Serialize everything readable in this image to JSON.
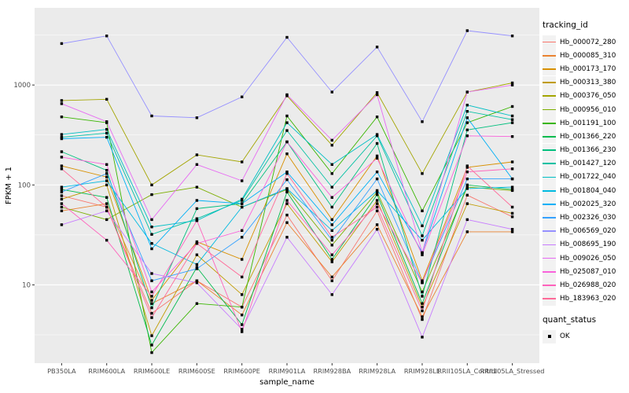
{
  "figure": {
    "legend": {
      "title": "tracking_id"
    },
    "legend2": {
      "title": "quant_status",
      "items": [
        {
          "label": "OK",
          "glyph": "black-square"
        }
      ]
    },
    "colors": {
      "panel_bg": "#EBEBEB",
      "grid_major": "#FFFFFF",
      "grid_minor": "#FFFFFF",
      "tick_label": "#4D4D4D",
      "axis_title": "#000000",
      "legend_key_bg": "#F2F2F2",
      "point": "#000000"
    }
  },
  "chart_data": {
    "type": "line",
    "title": "",
    "xlabel": "sample_name",
    "ylabel": "FPKM + 1",
    "yscale": "log10",
    "grid": "major and minor white gridlines on gray panel",
    "legend_position": "right",
    "point_shape": "small black square (quant_status OK)",
    "yticks": [
      10,
      100,
      1000
    ],
    "minor_gridlines": [
      3.162,
      31.62,
      316.2,
      3162
    ],
    "ylim_log10": [
      0.217,
      3.772
    ],
    "x_categories": [
      "PB350LA",
      "RRIM600LA",
      "RRIM600LE",
      "RRIM600SE",
      "RRIM600PE",
      "RRIM901LA",
      "RRIM928BA",
      "RRIM928LA",
      "RRIM928LE",
      "RRII105LA_Control",
      "RRII105LA_Stressed"
    ],
    "series": [
      {
        "name": "Hb_000072_280",
        "color": "#F8766D",
        "quant_status": "OK",
        "values": [
          78,
          60,
          5.2,
          11,
          6,
          50,
          11,
          55,
          4.5,
          79,
          48
        ]
      },
      {
        "name": "Hb_000085_310",
        "color": "#EA8331",
        "quant_status": "OK",
        "values": [
          55,
          65,
          6.5,
          11,
          5,
          42,
          12,
          40,
          4.8,
          34,
          34
        ]
      },
      {
        "name": "Hb_000173_170",
        "color": "#D89000",
        "quant_status": "OK",
        "values": [
          155,
          120,
          7,
          27,
          18,
          205,
          45,
          195,
          11,
          150,
          170
        ]
      },
      {
        "name": "Hb_000313_380",
        "color": "#C09B00",
        "quant_status": "OK",
        "values": [
          72,
          100,
          3.1,
          20,
          8,
          65,
          17,
          70,
          6,
          65,
          52
        ]
      },
      {
        "name": "Hb_000376_050",
        "color": "#A3A500",
        "quant_status": "OK",
        "values": [
          700,
          720,
          100,
          200,
          170,
          780,
          250,
          840,
          130,
          850,
          1050
        ]
      },
      {
        "name": "Hb_000956_010",
        "color": "#7CAE00",
        "quant_status": "OK",
        "values": [
          60,
          45,
          80,
          95,
          60,
          90,
          25,
          85,
          8.5,
          95,
          88
        ]
      },
      {
        "name": "Hb_001191_100",
        "color": "#39B600",
        "quant_status": "OK",
        "values": [
          480,
          420,
          2.1,
          6.5,
          6,
          490,
          130,
          480,
          55,
          420,
          610
        ]
      },
      {
        "name": "Hb_001366_220",
        "color": "#00BB4E",
        "quant_status": "OK",
        "values": [
          90,
          75,
          2.5,
          15,
          4,
          85,
          18,
          80,
          6.5,
          100,
          90
        ]
      },
      {
        "name": "Hb_001366_230",
        "color": "#00BF7D",
        "quant_status": "OK",
        "values": [
          215,
          140,
          5.9,
          58,
          65,
          270,
          60,
          260,
          7.7,
          355,
          420
        ]
      },
      {
        "name": "Hb_001427_120",
        "color": "#00C1A3",
        "quant_status": "OK",
        "values": [
          300,
          330,
          32,
          46,
          70,
          350,
          95,
          310,
          31,
          545,
          450
        ]
      },
      {
        "name": "Hb_001722_040",
        "color": "#00BFC4",
        "quant_status": "OK",
        "values": [
          320,
          360,
          38,
          44,
          72,
          420,
          160,
          320,
          39,
          630,
          490
        ]
      },
      {
        "name": "Hb_001804_040",
        "color": "#00BAE0",
        "quant_status": "OK",
        "values": [
          95,
          110,
          26,
          16,
          60,
          92,
          35,
          88,
          28,
          92,
          95
        ]
      },
      {
        "name": "Hb_002025_320",
        "color": "#00B0F6",
        "quant_status": "OK",
        "values": [
          290,
          300,
          23,
          70,
          65,
          135,
          40,
          135,
          21,
          470,
          115
        ]
      },
      {
        "name": "Hb_002326_030",
        "color": "#35A2FF",
        "quant_status": "OK",
        "values": [
          85,
          130,
          11,
          14.5,
          30,
          113,
          28,
          115,
          10.5,
          115,
          115
        ]
      },
      {
        "name": "Hb_006569_020",
        "color": "#9590FF",
        "quant_status": "OK",
        "values": [
          2600,
          3100,
          490,
          470,
          760,
          3000,
          850,
          2400,
          430,
          3500,
          3100
        ]
      },
      {
        "name": "Hb_008695_190",
        "color": "#C77CFF",
        "quant_status": "OK",
        "values": [
          40,
          55,
          13,
          10.5,
          3.6,
          30,
          8,
          36,
          3,
          45,
          36
        ]
      },
      {
        "name": "Hb_009026_050",
        "color": "#E76BF3",
        "quant_status": "OK",
        "values": [
          650,
          430,
          45,
          160,
          110,
          800,
          280,
          800,
          21,
          850,
          1000
        ]
      },
      {
        "name": "Hb_025087_010",
        "color": "#FA62DB",
        "quant_status": "OK",
        "values": [
          190,
          160,
          8.5,
          26,
          35,
          270,
          75,
          185,
          20,
          310,
          305
        ]
      },
      {
        "name": "Hb_026988_020",
        "color": "#FF62BC",
        "quant_status": "OK",
        "values": [
          65,
          28,
          7.7,
          44,
          3.4,
          70,
          20,
          65,
          10.5,
          135,
          145
        ]
      },
      {
        "name": "Hb_183963_020",
        "color": "#FF6A98",
        "quant_status": "OK",
        "values": [
          145,
          60,
          4.7,
          26,
          12,
          130,
          30,
          60,
          5.5,
          155,
          60
        ]
      }
    ]
  }
}
